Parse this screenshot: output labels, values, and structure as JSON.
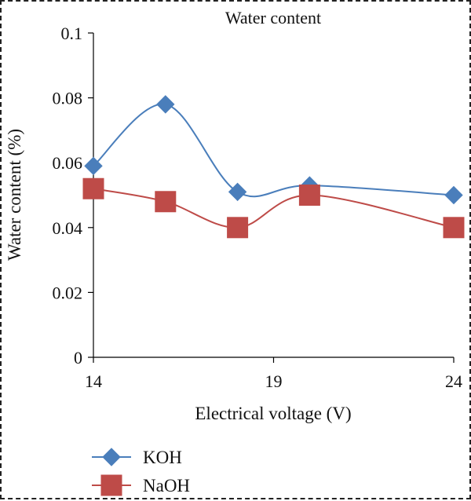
{
  "chart_data": {
    "type": "line",
    "title": "Water content",
    "xlabel": "Electrical voltage (V)",
    "ylabel": "Water content (%)",
    "xlim": [
      14,
      24
    ],
    "ylim": [
      0,
      0.1
    ],
    "x_ticks": [
      14,
      19,
      24
    ],
    "y_ticks": [
      0,
      0.02,
      0.04,
      0.06,
      0.08,
      0.1
    ],
    "x_tick_labels": [
      "14",
      "19",
      "24"
    ],
    "y_tick_labels": [
      "0",
      "0.02",
      "0.04",
      "0.06",
      "0.08",
      "0.1"
    ],
    "grid": false,
    "legend_position": "bottom-left",
    "series": [
      {
        "name": "KOH",
        "marker": "diamond",
        "color": "#4a7ebb",
        "x": [
          14,
          16,
          18,
          20,
          24
        ],
        "y": [
          0.059,
          0.078,
          0.051,
          0.053,
          0.05
        ]
      },
      {
        "name": "NaOH",
        "marker": "square",
        "color": "#be4b48",
        "x": [
          14,
          16,
          18,
          20,
          24
        ],
        "y": [
          0.052,
          0.048,
          0.04,
          0.05,
          0.04
        ]
      }
    ]
  }
}
